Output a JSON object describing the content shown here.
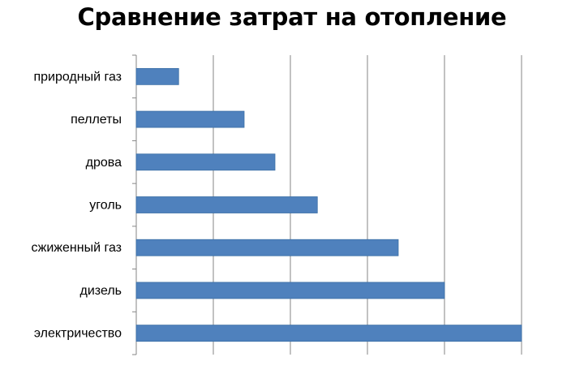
{
  "chart_data": {
    "type": "bar",
    "orientation": "horizontal",
    "title": "Сравнение затрат на отопление",
    "categories": [
      "природный газ",
      "пеллеты",
      "дрова",
      "уголь",
      "сжиженный газ",
      "дизель",
      "электричество"
    ],
    "values": [
      0.55,
      1.4,
      1.8,
      2.35,
      3.4,
      4.0,
      5.0
    ],
    "xlim": [
      0,
      5
    ],
    "xlabel": "",
    "ylabel": "",
    "grid": true,
    "legend": "none",
    "bar_color": "#4f81bd",
    "gridline_color": "#868686"
  }
}
